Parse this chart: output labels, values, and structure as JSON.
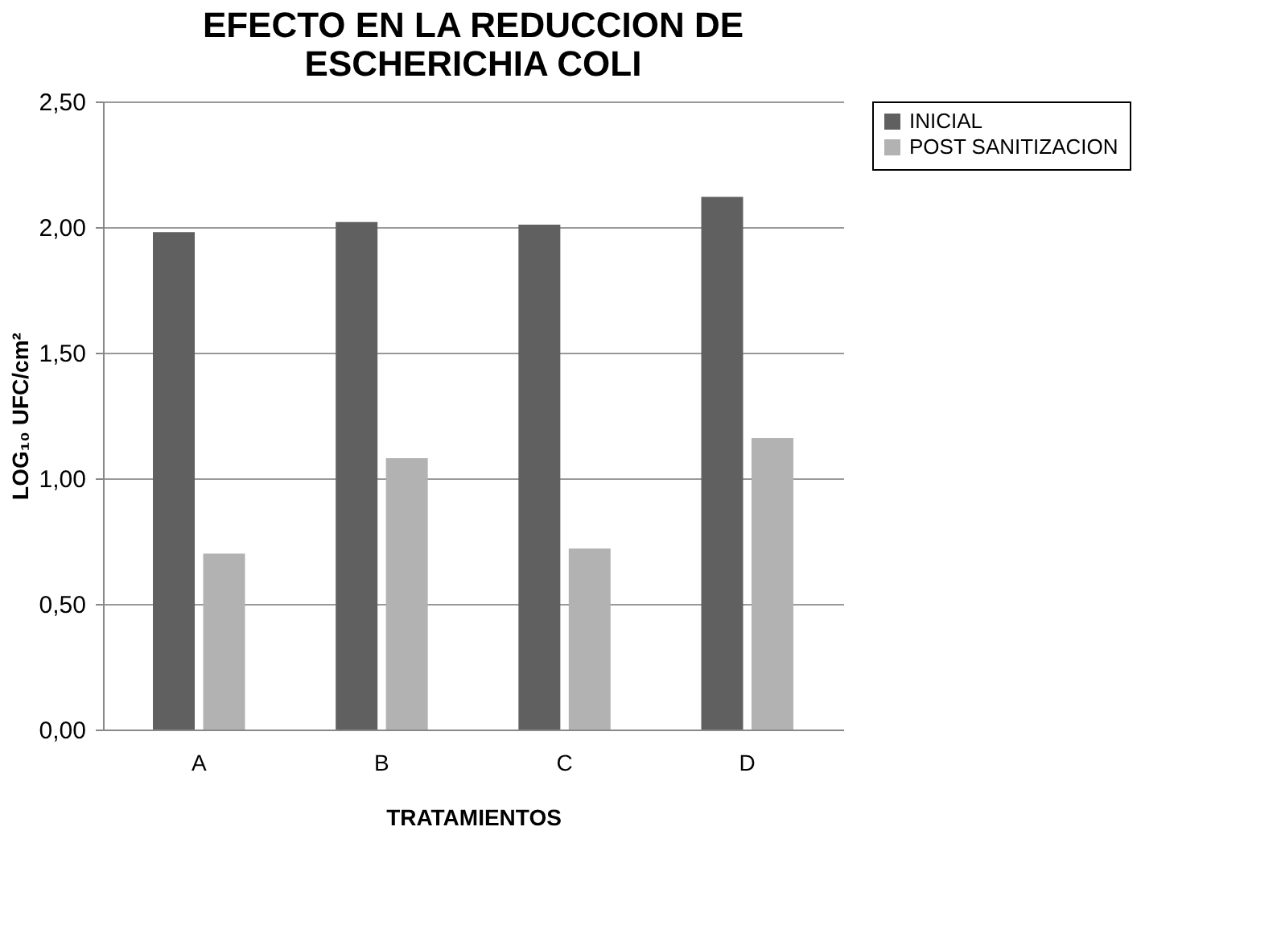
{
  "chart_data": {
    "type": "bar",
    "title": "EFECTO EN LA REDUCCION DE\nESCHERICHIA COLI",
    "xlabel": "TRATAMIENTOS",
    "ylabel": "LOG₁₀ UFC/cm²",
    "categories": [
      "A",
      "B",
      "C",
      "D"
    ],
    "series": [
      {
        "name": "INICIAL",
        "color": "#606060",
        "values": [
          1.98,
          2.02,
          2.01,
          2.12
        ]
      },
      {
        "name": "POST SANITIZACION",
        "color": "#b2b2b2",
        "values": [
          0.7,
          1.08,
          0.72,
          1.16
        ]
      }
    ],
    "ylim": [
      0,
      2.5
    ],
    "yticks": [
      {
        "value": 0,
        "label": "0,00"
      },
      {
        "value": 0.5,
        "label": "0,50"
      },
      {
        "value": 1,
        "label": "1,00"
      },
      {
        "value": 1.5,
        "label": "1,50"
      },
      {
        "value": 2,
        "label": "2,00"
      },
      {
        "value": 2.5,
        "label": "2,50"
      }
    ],
    "grid": "y",
    "legend": "right"
  }
}
